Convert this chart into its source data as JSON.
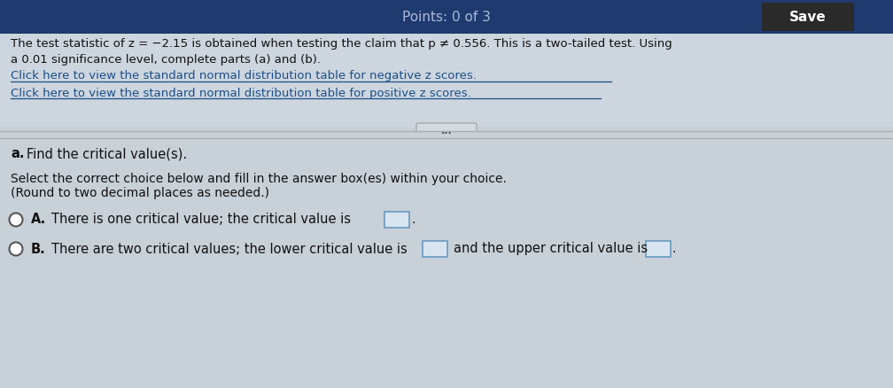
{
  "bg_color_top": "#1e3a6e",
  "bg_color_main": "#c8d0d8",
  "save_button_color": "#1e3a6e",
  "save_button_text": "Save",
  "save_text_color": "#ffffff",
  "header_text_line1": "The test statistic of z = −2.15 is obtained when testing the claim that p ≠ 0.556. This is a two-tailed test. Using",
  "header_text_line2": "a 0.01 significance level, complete parts (a) and (b).",
  "link1": "Click here to view the standard normal distribution table for negative z scores.",
  "link2": "Click here to view the standard normal distribution table for positive z scores.",
  "link_color": "#1a4f8a",
  "section_a_label": "a.",
  "section_a_text": "Find the critical value(s).",
  "instruction_line1": "Select the correct choice below and fill in the answer box(es) within your choice.",
  "instruction_line2": "(Round to two decimal places as needed.)",
  "option_a_label": "A.",
  "option_a_text": "There is one critical value; the critical value is",
  "option_b_label": "B.",
  "option_b_text1": "There are two critical values; the lower critical value is",
  "option_b_text2": "and the upper critical value is",
  "radio_circle_color": "#ffffff",
  "radio_border_color": "#555555",
  "input_box_color": "#d8e4f0",
  "input_box_border": "#6a9abf",
  "text_color": "#111111",
  "divider_color": "#aaaaaa",
  "top_bar_text": "Points: 0 of 3"
}
